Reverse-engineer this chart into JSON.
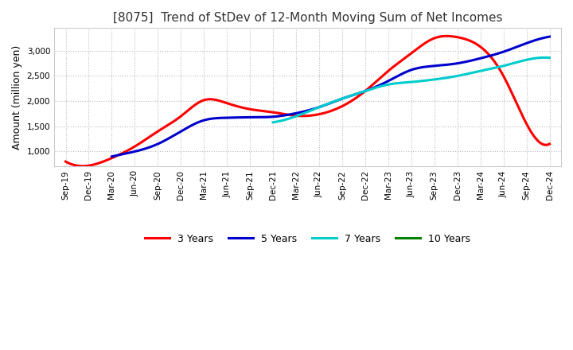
{
  "title": "[8075]  Trend of StDev of 12-Month Moving Sum of Net Incomes",
  "ylabel": "Amount (million yen)",
  "background_color": "#ffffff",
  "grid_color": "#bbbbbb",
  "series": {
    "3 Years": {
      "color": "#ff0000",
      "x_indices": [
        0,
        1,
        2,
        3,
        4,
        5,
        6,
        7,
        8,
        9,
        10,
        11,
        12,
        13,
        14,
        15,
        16,
        17,
        18,
        19,
        20,
        21
      ],
      "values": [
        800,
        720,
        870,
        1100,
        1400,
        1700,
        2020,
        1960,
        1840,
        1780,
        1710,
        1740,
        1900,
        2200,
        2600,
        2950,
        3250,
        3270,
        3080,
        2500,
        1550,
        1150
      ]
    },
    "5 Years": {
      "color": "#0000cd",
      "x_indices": [
        2,
        3,
        4,
        5,
        6,
        7,
        8,
        9,
        10,
        11,
        12,
        13,
        14,
        15,
        16,
        17,
        18,
        19,
        20,
        21
      ],
      "values": [
        900,
        1000,
        1150,
        1400,
        1620,
        1670,
        1680,
        1690,
        1760,
        1880,
        2050,
        2200,
        2400,
        2620,
        2700,
        2750,
        2850,
        2980,
        3150,
        3280
      ]
    },
    "7 Years": {
      "color": "#00cccc",
      "x_indices": [
        9,
        10,
        11,
        12,
        13,
        14,
        15,
        16,
        17,
        18,
        19,
        20,
        21
      ],
      "values": [
        1580,
        1700,
        1880,
        2050,
        2200,
        2330,
        2380,
        2430,
        2500,
        2600,
        2700,
        2820,
        2860
      ]
    },
    "10 Years": {
      "color": "#008000",
      "x_indices": [],
      "values": []
    }
  },
  "x_labels": [
    "Sep-19",
    "Dec-19",
    "Mar-20",
    "Jun-20",
    "Sep-20",
    "Dec-20",
    "Mar-21",
    "Jun-21",
    "Sep-21",
    "Dec-21",
    "Mar-22",
    "Jun-22",
    "Sep-22",
    "Dec-22",
    "Mar-23",
    "Jun-23",
    "Sep-23",
    "Dec-23",
    "Mar-24",
    "Jun-24",
    "Sep-24",
    "Dec-24"
  ],
  "ylim": [
    700,
    3450
  ],
  "yticks": [
    1000,
    1500,
    2000,
    2500,
    3000
  ],
  "title_fontsize": 11,
  "legend_entries": [
    "3 Years",
    "5 Years",
    "7 Years",
    "10 Years"
  ],
  "legend_colors": [
    "#ff0000",
    "#0000cd",
    "#00cccc",
    "#008000"
  ]
}
